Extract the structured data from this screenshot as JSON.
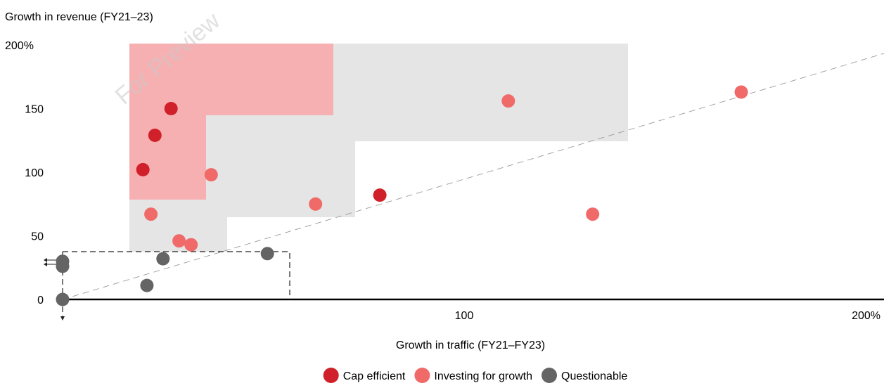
{
  "chart_data": {
    "type": "scatter",
    "ylabel": "Growth in revenue (FY21–23)",
    "xlabel": "Growth in traffic (FY21–FY23)",
    "x_ticks": [
      "100",
      "200%"
    ],
    "x_tick_values": [
      100,
      200
    ],
    "y_ticks": [
      "0",
      "50",
      "100",
      "150",
      "200%"
    ],
    "y_tick_values": [
      0,
      50,
      100,
      150,
      200
    ],
    "xlim": [
      0,
      200
    ],
    "ylim": [
      0,
      200
    ],
    "reference_line": "y = x",
    "watermark": "For Preview",
    "legend_position": "bottom-center",
    "colors": {
      "cap_efficient": "#d0202a",
      "investing": "#f06a6a",
      "questionable": "#646464",
      "pink_zone": "#f7b0b2",
      "grey_zone": "#e5e5e5"
    },
    "series": [
      {
        "name": "Cap efficient",
        "color": "#d0202a",
        "points": [
          [
            27,
            150
          ],
          [
            23,
            129
          ],
          [
            20,
            102
          ],
          [
            79,
            82
          ]
        ]
      },
      {
        "name": "Investing for growth",
        "color": "#f06a6a",
        "points": [
          [
            37,
            98
          ],
          [
            22,
            67
          ],
          [
            29,
            46
          ],
          [
            32,
            43
          ],
          [
            63,
            75
          ],
          [
            111,
            156
          ],
          [
            132,
            67
          ],
          [
            169,
            163
          ]
        ]
      },
      {
        "name": "Questionable",
        "color": "#646464",
        "points": [
          [
            0,
            30
          ],
          [
            0,
            26
          ],
          [
            25,
            32
          ],
          [
            21,
            11
          ],
          [
            51,
            36
          ],
          [
            0,
            0
          ]
        ]
      }
    ]
  },
  "legend": [
    {
      "label": "Cap efficient",
      "color": "#d0202a"
    },
    {
      "label": "Investing for growth",
      "color": "#f06a6a"
    },
    {
      "label": "Questionable",
      "color": "#646464"
    }
  ]
}
